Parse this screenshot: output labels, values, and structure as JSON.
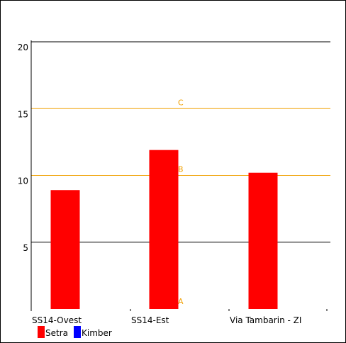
{
  "chart_data": {
    "type": "bar",
    "categories": [
      "SS14-Ovest",
      "SS14-Est",
      "Via Tambarin - ZI"
    ],
    "series": [
      {
        "name": "Setra",
        "color": "#ff0000",
        "values": [
          8.9,
          11.9,
          10.2
        ]
      },
      {
        "name": "Kimber",
        "color": "#0000ff",
        "values": [
          null,
          null,
          null
        ]
      }
    ],
    "ylim": [
      0,
      20
    ],
    "yticks": [
      5,
      10,
      15,
      20
    ],
    "reference_lines": [
      {
        "label": "A",
        "value": 0,
        "color": "#f0a000"
      },
      {
        "label": "B",
        "value": 10,
        "color": "#f0a000"
      },
      {
        "label": "C",
        "value": 15,
        "color": "#f0a000"
      }
    ],
    "black_gridlines": [
      5,
      20
    ],
    "legend_position": "bottom-left",
    "title": "",
    "xlabel": "",
    "ylabel": ""
  }
}
